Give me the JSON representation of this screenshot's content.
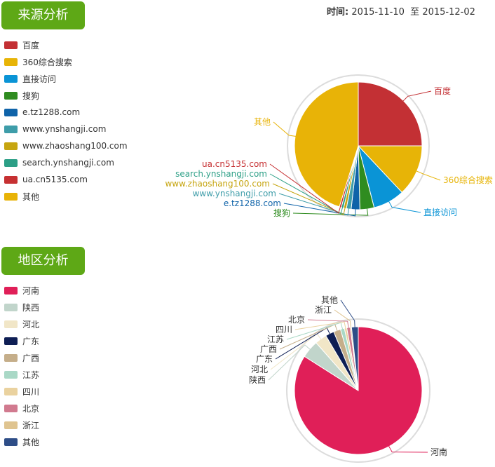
{
  "header": {
    "date_label": "时间:",
    "start_date": "2015-11-10",
    "to_label": "至",
    "end_date": "2015-12-02"
  },
  "chart_data": [
    {
      "section_title": "来源分析",
      "type": "pie",
      "categories": [
        "百度",
        "360综合搜索",
        "直接访问",
        "搜狗",
        "e.tz1288.com",
        "www.ynshangji.com",
        "www.zhaoshang100.com",
        "search.ynshangji.com",
        "ua.cn5135.com",
        "其他"
      ],
      "values": [
        25.0,
        13.0,
        8.0,
        3.6,
        2.2,
        1.2,
        0.7,
        0.6,
        0.5,
        45.2
      ],
      "colors": [
        "#c33034",
        "#e7b407",
        "#0a94d6",
        "#2f8c20",
        "#0f63a9",
        "#3e9da9",
        "#c6a510",
        "#2c9f86",
        "#c63032",
        "#e8b307"
      ],
      "legend_position": "left"
    },
    {
      "section_title": "地区分析",
      "type": "pie",
      "categories": [
        "河南",
        "陕西",
        "河北",
        "广东",
        "广西",
        "江苏",
        "四川",
        "北京",
        "浙江",
        "其他"
      ],
      "values": [
        84.0,
        4.5,
        3.0,
        2.2,
        1.8,
        1.0,
        0.6,
        0.9,
        0.3,
        1.7
      ],
      "colors": [
        "#e01f58",
        "#c1d5cb",
        "#f1e6c7",
        "#0e1e54",
        "#c5ae8a",
        "#a9d8c6",
        "#ead29f",
        "#d17a8f",
        "#dfc490",
        "#2e4d87"
      ],
      "legend_position": "left"
    }
  ]
}
